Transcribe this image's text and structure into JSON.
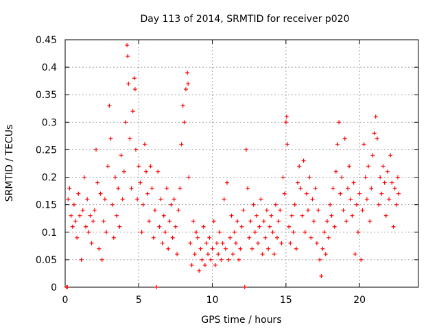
{
  "chart_data": {
    "type": "scatter",
    "title": "Day 113 of 2014, SRMTID for receiver p020",
    "xlabel": "GPS time / hours",
    "ylabel": "SRMTID / TECUs",
    "xlim": [
      0,
      24
    ],
    "ylim": [
      0,
      0.45
    ],
    "xticks": [
      0,
      5,
      10,
      15,
      20
    ],
    "yticks": [
      0,
      0.05,
      0.1,
      0.15,
      0.2,
      0.25,
      0.3,
      0.35,
      0.4,
      0.45
    ],
    "xtick_labels": [
      "0",
      "5",
      "10",
      "15",
      "20"
    ],
    "ytick_labels": [
      "0",
      "0.05",
      "0.1",
      "0.15",
      "0.2",
      "0.25",
      "0.3",
      "0.35",
      "0.4",
      "0.45"
    ],
    "grid": true,
    "marker": "+",
    "color": "#ff0000",
    "series": [
      {
        "name": "SRMTID",
        "points": [
          [
            0.1,
            0.0
          ],
          [
            0.15,
            0.0
          ],
          [
            0.2,
            0.16
          ],
          [
            0.3,
            0.18
          ],
          [
            0.4,
            0.13
          ],
          [
            0.5,
            0.11
          ],
          [
            0.6,
            0.15
          ],
          [
            0.7,
            0.12
          ],
          [
            0.8,
            0.09
          ],
          [
            0.9,
            0.17
          ],
          [
            1.0,
            0.13
          ],
          [
            1.1,
            0.05
          ],
          [
            1.2,
            0.14
          ],
          [
            1.3,
            0.2
          ],
          [
            1.4,
            0.11
          ],
          [
            1.5,
            0.16
          ],
          [
            1.6,
            0.1
          ],
          [
            1.7,
            0.13
          ],
          [
            1.8,
            0.08
          ],
          [
            1.9,
            0.12
          ],
          [
            2.0,
            0.14
          ],
          [
            2.1,
            0.25
          ],
          [
            2.2,
            0.19
          ],
          [
            2.3,
            0.07
          ],
          [
            2.4,
            0.17
          ],
          [
            2.5,
            0.05
          ],
          [
            2.6,
            0.12
          ],
          [
            2.7,
            0.16
          ],
          [
            2.8,
            0.1
          ],
          [
            2.9,
            0.22
          ],
          [
            3.0,
            0.33
          ],
          [
            3.1,
            0.27
          ],
          [
            3.2,
            0.15
          ],
          [
            3.3,
            0.09
          ],
          [
            3.4,
            0.2
          ],
          [
            3.5,
            0.13
          ],
          [
            3.6,
            0.18
          ],
          [
            3.7,
            0.11
          ],
          [
            3.8,
            0.24
          ],
          [
            3.9,
            0.16
          ],
          [
            4.0,
            0.21
          ],
          [
            4.1,
            0.3
          ],
          [
            4.2,
            0.44
          ],
          [
            4.25,
            0.42
          ],
          [
            4.3,
            0.37
          ],
          [
            4.4,
            0.27
          ],
          [
            4.5,
            0.18
          ],
          [
            4.6,
            0.32
          ],
          [
            4.7,
            0.38
          ],
          [
            4.75,
            0.36
          ],
          [
            4.8,
            0.25
          ],
          [
            4.9,
            0.16
          ],
          [
            5.0,
            0.22
          ],
          [
            5.1,
            0.19
          ],
          [
            5.2,
            0.1
          ],
          [
            5.3,
            0.15
          ],
          [
            5.4,
            0.26
          ],
          [
            5.5,
            0.21
          ],
          [
            5.6,
            0.17
          ],
          [
            5.7,
            0.12
          ],
          [
            5.8,
            0.22
          ],
          [
            5.9,
            0.18
          ],
          [
            6.0,
            0.09
          ],
          [
            6.1,
            0.14
          ],
          [
            6.2,
            0.0
          ],
          [
            6.3,
            0.21
          ],
          [
            6.4,
            0.11
          ],
          [
            6.5,
            0.16
          ],
          [
            6.6,
            0.08
          ],
          [
            6.7,
            0.13
          ],
          [
            6.8,
            0.1
          ],
          [
            6.9,
            0.18
          ],
          [
            7.0,
            0.07
          ],
          [
            7.1,
            0.12
          ],
          [
            7.2,
            0.15
          ],
          [
            7.3,
            0.09
          ],
          [
            7.4,
            0.16
          ],
          [
            7.5,
            0.11
          ],
          [
            7.6,
            0.06
          ],
          [
            7.7,
            0.14
          ],
          [
            7.8,
            0.18
          ],
          [
            7.9,
            0.26
          ],
          [
            8.0,
            0.33
          ],
          [
            8.1,
            0.3
          ],
          [
            8.2,
            0.36
          ],
          [
            8.3,
            0.39
          ],
          [
            8.35,
            0.37
          ],
          [
            8.4,
            0.2
          ],
          [
            8.5,
            0.08
          ],
          [
            8.6,
            0.04
          ],
          [
            8.7,
            0.12
          ],
          [
            8.8,
            0.06
          ],
          [
            8.9,
            0.1
          ],
          [
            9.0,
            0.09
          ],
          [
            9.1,
            0.03
          ],
          [
            9.2,
            0.07
          ],
          [
            9.3,
            0.05
          ],
          [
            9.4,
            0.11
          ],
          [
            9.5,
            0.04
          ],
          [
            9.6,
            0.08
          ],
          [
            9.7,
            0.06
          ],
          [
            9.8,
            0.09
          ],
          [
            9.9,
            0.05
          ],
          [
            10.0,
            0.07
          ],
          [
            10.1,
            0.12
          ],
          [
            10.2,
            0.04
          ],
          [
            10.3,
            0.08
          ],
          [
            10.4,
            0.06
          ],
          [
            10.5,
            0.1
          ],
          [
            10.6,
            0.05
          ],
          [
            10.7,
            0.08
          ],
          [
            10.8,
            0.16
          ],
          [
            10.9,
            0.07
          ],
          [
            11.0,
            0.19
          ],
          [
            11.1,
            0.05
          ],
          [
            11.2,
            0.09
          ],
          [
            11.3,
            0.13
          ],
          [
            11.4,
            0.06
          ],
          [
            11.5,
            0.1
          ],
          [
            11.6,
            0.08
          ],
          [
            11.7,
            0.12
          ],
          [
            11.8,
            0.05
          ],
          [
            11.9,
            0.07
          ],
          [
            12.0,
            0.11
          ],
          [
            12.1,
            0.14
          ],
          [
            12.2,
            0.0
          ],
          [
            12.3,
            0.25
          ],
          [
            12.4,
            0.18
          ],
          [
            12.5,
            0.09
          ],
          [
            12.6,
            0.12
          ],
          [
            12.7,
            0.07
          ],
          [
            12.8,
            0.15
          ],
          [
            12.9,
            0.1
          ],
          [
            13.0,
            0.13
          ],
          [
            13.1,
            0.08
          ],
          [
            13.2,
            0.11
          ],
          [
            13.3,
            0.16
          ],
          [
            13.4,
            0.06
          ],
          [
            13.5,
            0.12
          ],
          [
            13.6,
            0.09
          ],
          [
            13.7,
            0.14
          ],
          [
            13.8,
            0.07
          ],
          [
            13.9,
            0.11
          ],
          [
            14.0,
            0.13
          ],
          [
            14.1,
            0.1
          ],
          [
            14.2,
            0.06
          ],
          [
            14.3,
            0.15
          ],
          [
            14.4,
            0.09
          ],
          [
            14.5,
            0.12
          ],
          [
            14.6,
            0.14
          ],
          [
            14.7,
            0.08
          ],
          [
            14.8,
            0.2
          ],
          [
            14.9,
            0.17
          ],
          [
            15.0,
            0.3
          ],
          [
            15.05,
            0.31
          ],
          [
            15.1,
            0.26
          ],
          [
            15.2,
            0.11
          ],
          [
            15.3,
            0.08
          ],
          [
            15.4,
            0.13
          ],
          [
            15.5,
            0.1
          ],
          [
            15.6,
            0.15
          ],
          [
            15.7,
            0.07
          ],
          [
            15.8,
            0.19
          ],
          [
            15.9,
            0.22
          ],
          [
            16.0,
            0.18
          ],
          [
            16.1,
            0.13
          ],
          [
            16.2,
            0.23
          ],
          [
            16.3,
            0.1
          ],
          [
            16.4,
            0.17
          ],
          [
            16.5,
            0.14
          ],
          [
            16.6,
            0.2
          ],
          [
            16.7,
            0.09
          ],
          [
            16.8,
            0.16
          ],
          [
            16.9,
            0.12
          ],
          [
            17.0,
            0.18
          ],
          [
            17.1,
            0.08
          ],
          [
            17.2,
            0.14
          ],
          [
            17.3,
            0.05
          ],
          [
            17.4,
            0.02
          ],
          [
            17.5,
            0.07
          ],
          [
            17.6,
            0.1
          ],
          [
            17.7,
            0.06
          ],
          [
            17.8,
            0.12
          ],
          [
            17.9,
            0.09
          ],
          [
            18.0,
            0.15
          ],
          [
            18.1,
            0.13
          ],
          [
            18.2,
            0.18
          ],
          [
            18.3,
            0.11
          ],
          [
            18.4,
            0.21
          ],
          [
            18.5,
            0.26
          ],
          [
            18.6,
            0.3
          ],
          [
            18.7,
            0.17
          ],
          [
            18.8,
            0.2
          ],
          [
            18.9,
            0.14
          ],
          [
            19.0,
            0.27
          ],
          [
            19.1,
            0.12
          ],
          [
            19.2,
            0.18
          ],
          [
            19.3,
            0.22
          ],
          [
            19.4,
            0.16
          ],
          [
            19.5,
            0.13
          ],
          [
            19.6,
            0.19
          ],
          [
            19.7,
            0.06
          ],
          [
            19.8,
            0.15
          ],
          [
            19.9,
            0.1
          ],
          [
            20.0,
            0.17
          ],
          [
            20.1,
            0.05
          ],
          [
            20.2,
            0.14
          ],
          [
            20.3,
            0.26
          ],
          [
            20.4,
            0.2
          ],
          [
            20.5,
            0.16
          ],
          [
            20.6,
            0.22
          ],
          [
            20.7,
            0.12
          ],
          [
            20.8,
            0.18
          ],
          [
            20.9,
            0.24
          ],
          [
            21.0,
            0.28
          ],
          [
            21.1,
            0.31
          ],
          [
            21.2,
            0.27
          ],
          [
            21.3,
            0.15
          ],
          [
            21.4,
            0.2
          ],
          [
            21.5,
            0.17
          ],
          [
            21.6,
            0.22
          ],
          [
            21.7,
            0.19
          ],
          [
            21.8,
            0.13
          ],
          [
            21.9,
            0.21
          ],
          [
            22.0,
            0.16
          ],
          [
            22.1,
            0.24
          ],
          [
            22.2,
            0.19
          ],
          [
            22.3,
            0.11
          ],
          [
            22.4,
            0.18
          ],
          [
            22.5,
            0.15
          ],
          [
            22.6,
            0.2
          ],
          [
            22.65,
            0.17
          ]
        ]
      }
    ]
  }
}
